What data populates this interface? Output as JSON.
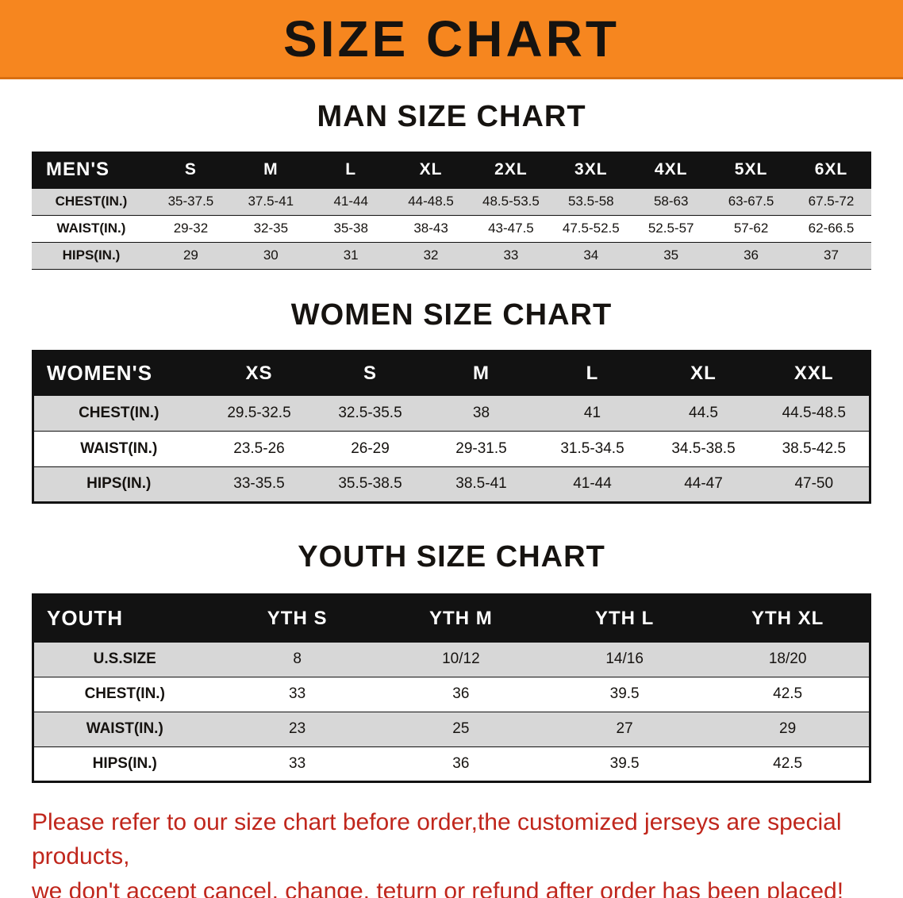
{
  "banner": {
    "title": "SIZE CHART"
  },
  "colors": {
    "banner_bg": "#f6861f",
    "table_header_bg": "#121212",
    "row_stripe": "#d7d7d7",
    "disclaimer_red": "#c0261c"
  },
  "sections": [
    {
      "id": "men",
      "title": "MAN SIZE CHART",
      "table": {
        "header": [
          "MEN'S",
          "S",
          "M",
          "L",
          "XL",
          "2XL",
          "3XL",
          "4XL",
          "5XL",
          "6XL"
        ],
        "rows": [
          {
            "label": "CHEST(IN.)",
            "values": [
              "35-37.5",
              "37.5-41",
              "41-44",
              "44-48.5",
              "48.5-53.5",
              "53.5-58",
              "58-63",
              "63-67.5",
              "67.5-72"
            ]
          },
          {
            "label": "WAIST(IN.)",
            "values": [
              "29-32",
              "32-35",
              "35-38",
              "38-43",
              "43-47.5",
              "47.5-52.5",
              "52.5-57",
              "57-62",
              "62-66.5"
            ]
          },
          {
            "label": "HIPS(IN.)",
            "values": [
              "29",
              "30",
              "31",
              "32",
              "33",
              "34",
              "35",
              "36",
              "37"
            ]
          }
        ]
      }
    },
    {
      "id": "women",
      "title": "WOMEN SIZE CHART",
      "table": {
        "header": [
          "WOMEN'S",
          "XS",
          "S",
          "M",
          "L",
          "XL",
          "XXL"
        ],
        "rows": [
          {
            "label": "CHEST(IN.)",
            "values": [
              "29.5-32.5",
              "32.5-35.5",
              "38",
              "41",
              "44.5",
              "44.5-48.5"
            ]
          },
          {
            "label": "WAIST(IN.)",
            "values": [
              "23.5-26",
              "26-29",
              "29-31.5",
              "31.5-34.5",
              "34.5-38.5",
              "38.5-42.5"
            ]
          },
          {
            "label": "HIPS(IN.)",
            "values": [
              "33-35.5",
              "35.5-38.5",
              "38.5-41",
              "41-44",
              "44-47",
              "47-50"
            ]
          }
        ]
      }
    },
    {
      "id": "youth",
      "title": "YOUTH SIZE CHART",
      "table": {
        "header": [
          "YOUTH",
          "YTH S",
          "YTH M",
          "YTH L",
          "YTH XL"
        ],
        "rows": [
          {
            "label": "U.S.SIZE",
            "values": [
              "8",
              "10/12",
              "14/16",
              "18/20"
            ]
          },
          {
            "label": "CHEST(IN.)",
            "values": [
              "33",
              "36",
              "39.5",
              "42.5"
            ]
          },
          {
            "label": "WAIST(IN.)",
            "values": [
              "23",
              "25",
              "27",
              "29"
            ]
          },
          {
            "label": "HIPS(IN.)",
            "values": [
              "33",
              "36",
              "39.5",
              "42.5"
            ]
          }
        ]
      }
    }
  ],
  "footer": {
    "lines": [
      "Please refer to our size chart before order,the customized jerseys are special products,",
      "we don't accept cancel, change, teturn or refund after order has been placed!"
    ]
  }
}
